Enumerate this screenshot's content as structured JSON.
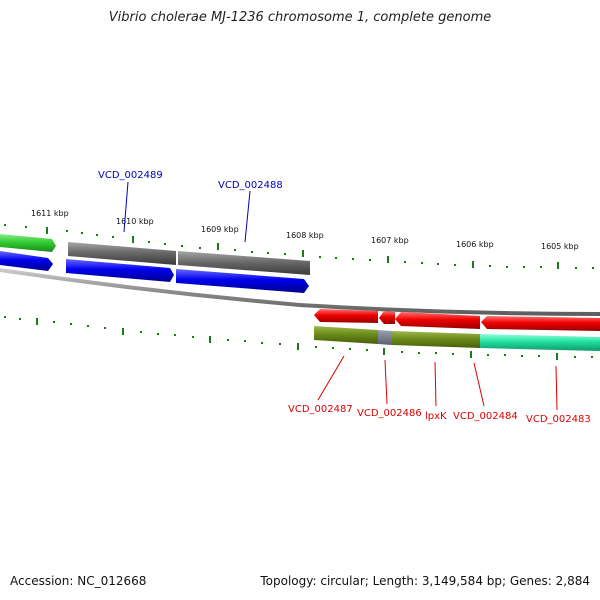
{
  "title": "Vibrio cholerae MJ-1236 chromosome 1, complete genome",
  "footer": {
    "accession": "Accession: NC_012668",
    "summary": "Topology: circular; Length: 3,149,584 bp; Genes: 2,884"
  },
  "scale": {
    "labels": [
      "1611 kbp",
      "1610 kbp",
      "1609 kbp",
      "1608 kbp",
      "1607 kbp",
      "1606 kbp",
      "1605 kbp"
    ]
  },
  "genes": {
    "top_labels": [
      "VCD_002489",
      "VCD_002488"
    ],
    "bottom_labels": [
      "VCD_002487",
      "VCD_002486",
      "lpxK",
      "VCD_002484",
      "VCD_002483"
    ]
  },
  "colors": {
    "top_label": "#0000bb",
    "bottom_label": "#dd0000",
    "tick": "#1a7a1a",
    "cds_blue": "#0000ee",
    "cds_gray": "#6a6a6a",
    "cds_green": "#33cc33",
    "cds_red": "#ee0000",
    "cds_olive": "#6b8c1a",
    "cds_cyan": "#22e0a0"
  }
}
